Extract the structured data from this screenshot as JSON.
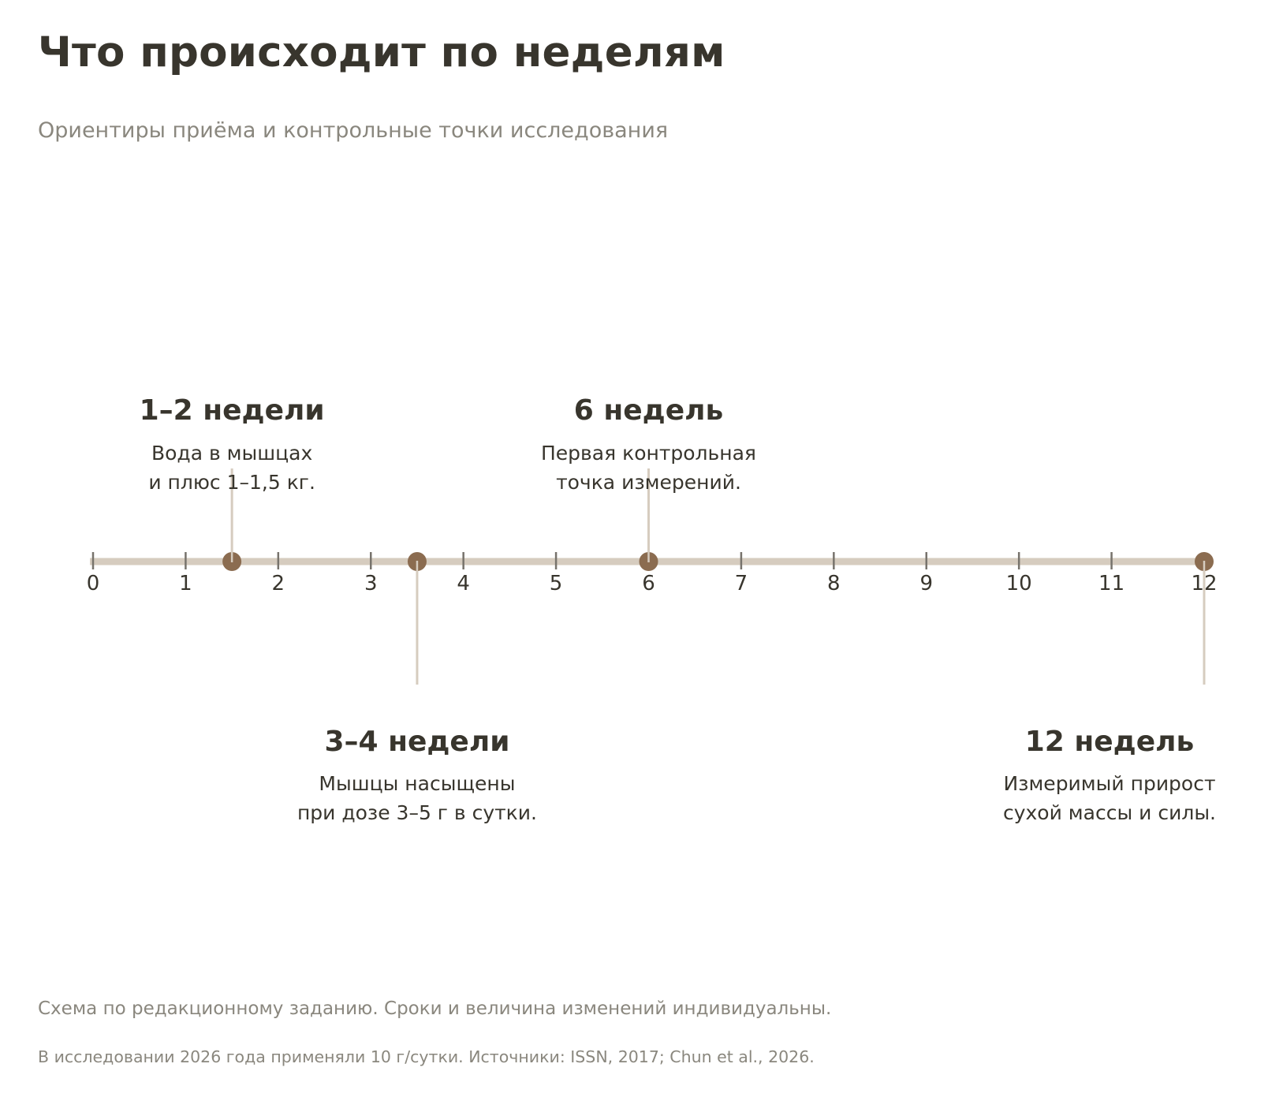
{
  "title": "Что происходит по неделям",
  "subtitle": "Ориентиры приёма и контрольные точки исследования",
  "colors": {
    "axis": "#d6ccbf",
    "tick": "#77736c",
    "marker": "#8b6c50",
    "stem": "#d6ccbf",
    "text": "#38352d",
    "muted": "#8a877e"
  },
  "timeline": {
    "x_min": 0,
    "x_max": 12,
    "ticks": [
      "0",
      "1",
      "2",
      "3",
      "4",
      "5",
      "6",
      "7",
      "8",
      "9",
      "10",
      "11",
      "12"
    ],
    "events": [
      {
        "week": 1.5,
        "side": "above",
        "label": "1–2 недели",
        "text": [
          "Вода в мышцах",
          "и плюс 1–1,5 кг."
        ]
      },
      {
        "week": 3.5,
        "side": "below",
        "label": "3–4 недели",
        "text": [
          "Мышцы насыщены",
          "при дозе 3–5 г в сутки."
        ]
      },
      {
        "week": 6,
        "side": "above",
        "label": "6 недель",
        "text": [
          "Первая контрольная",
          "точка измерений."
        ]
      },
      {
        "week": 12,
        "side": "below",
        "label": "12 недель",
        "text": [
          "Измеримый прирост",
          "сухой массы и силы."
        ]
      }
    ]
  },
  "footnotes": [
    "Схема по редакционному заданию. Сроки и величина изменений индивидуальны.",
    "В исследовании 2026 года применяли 10 г/сутки. Источники: ISSN, 2017; Chun et al., 2026."
  ]
}
